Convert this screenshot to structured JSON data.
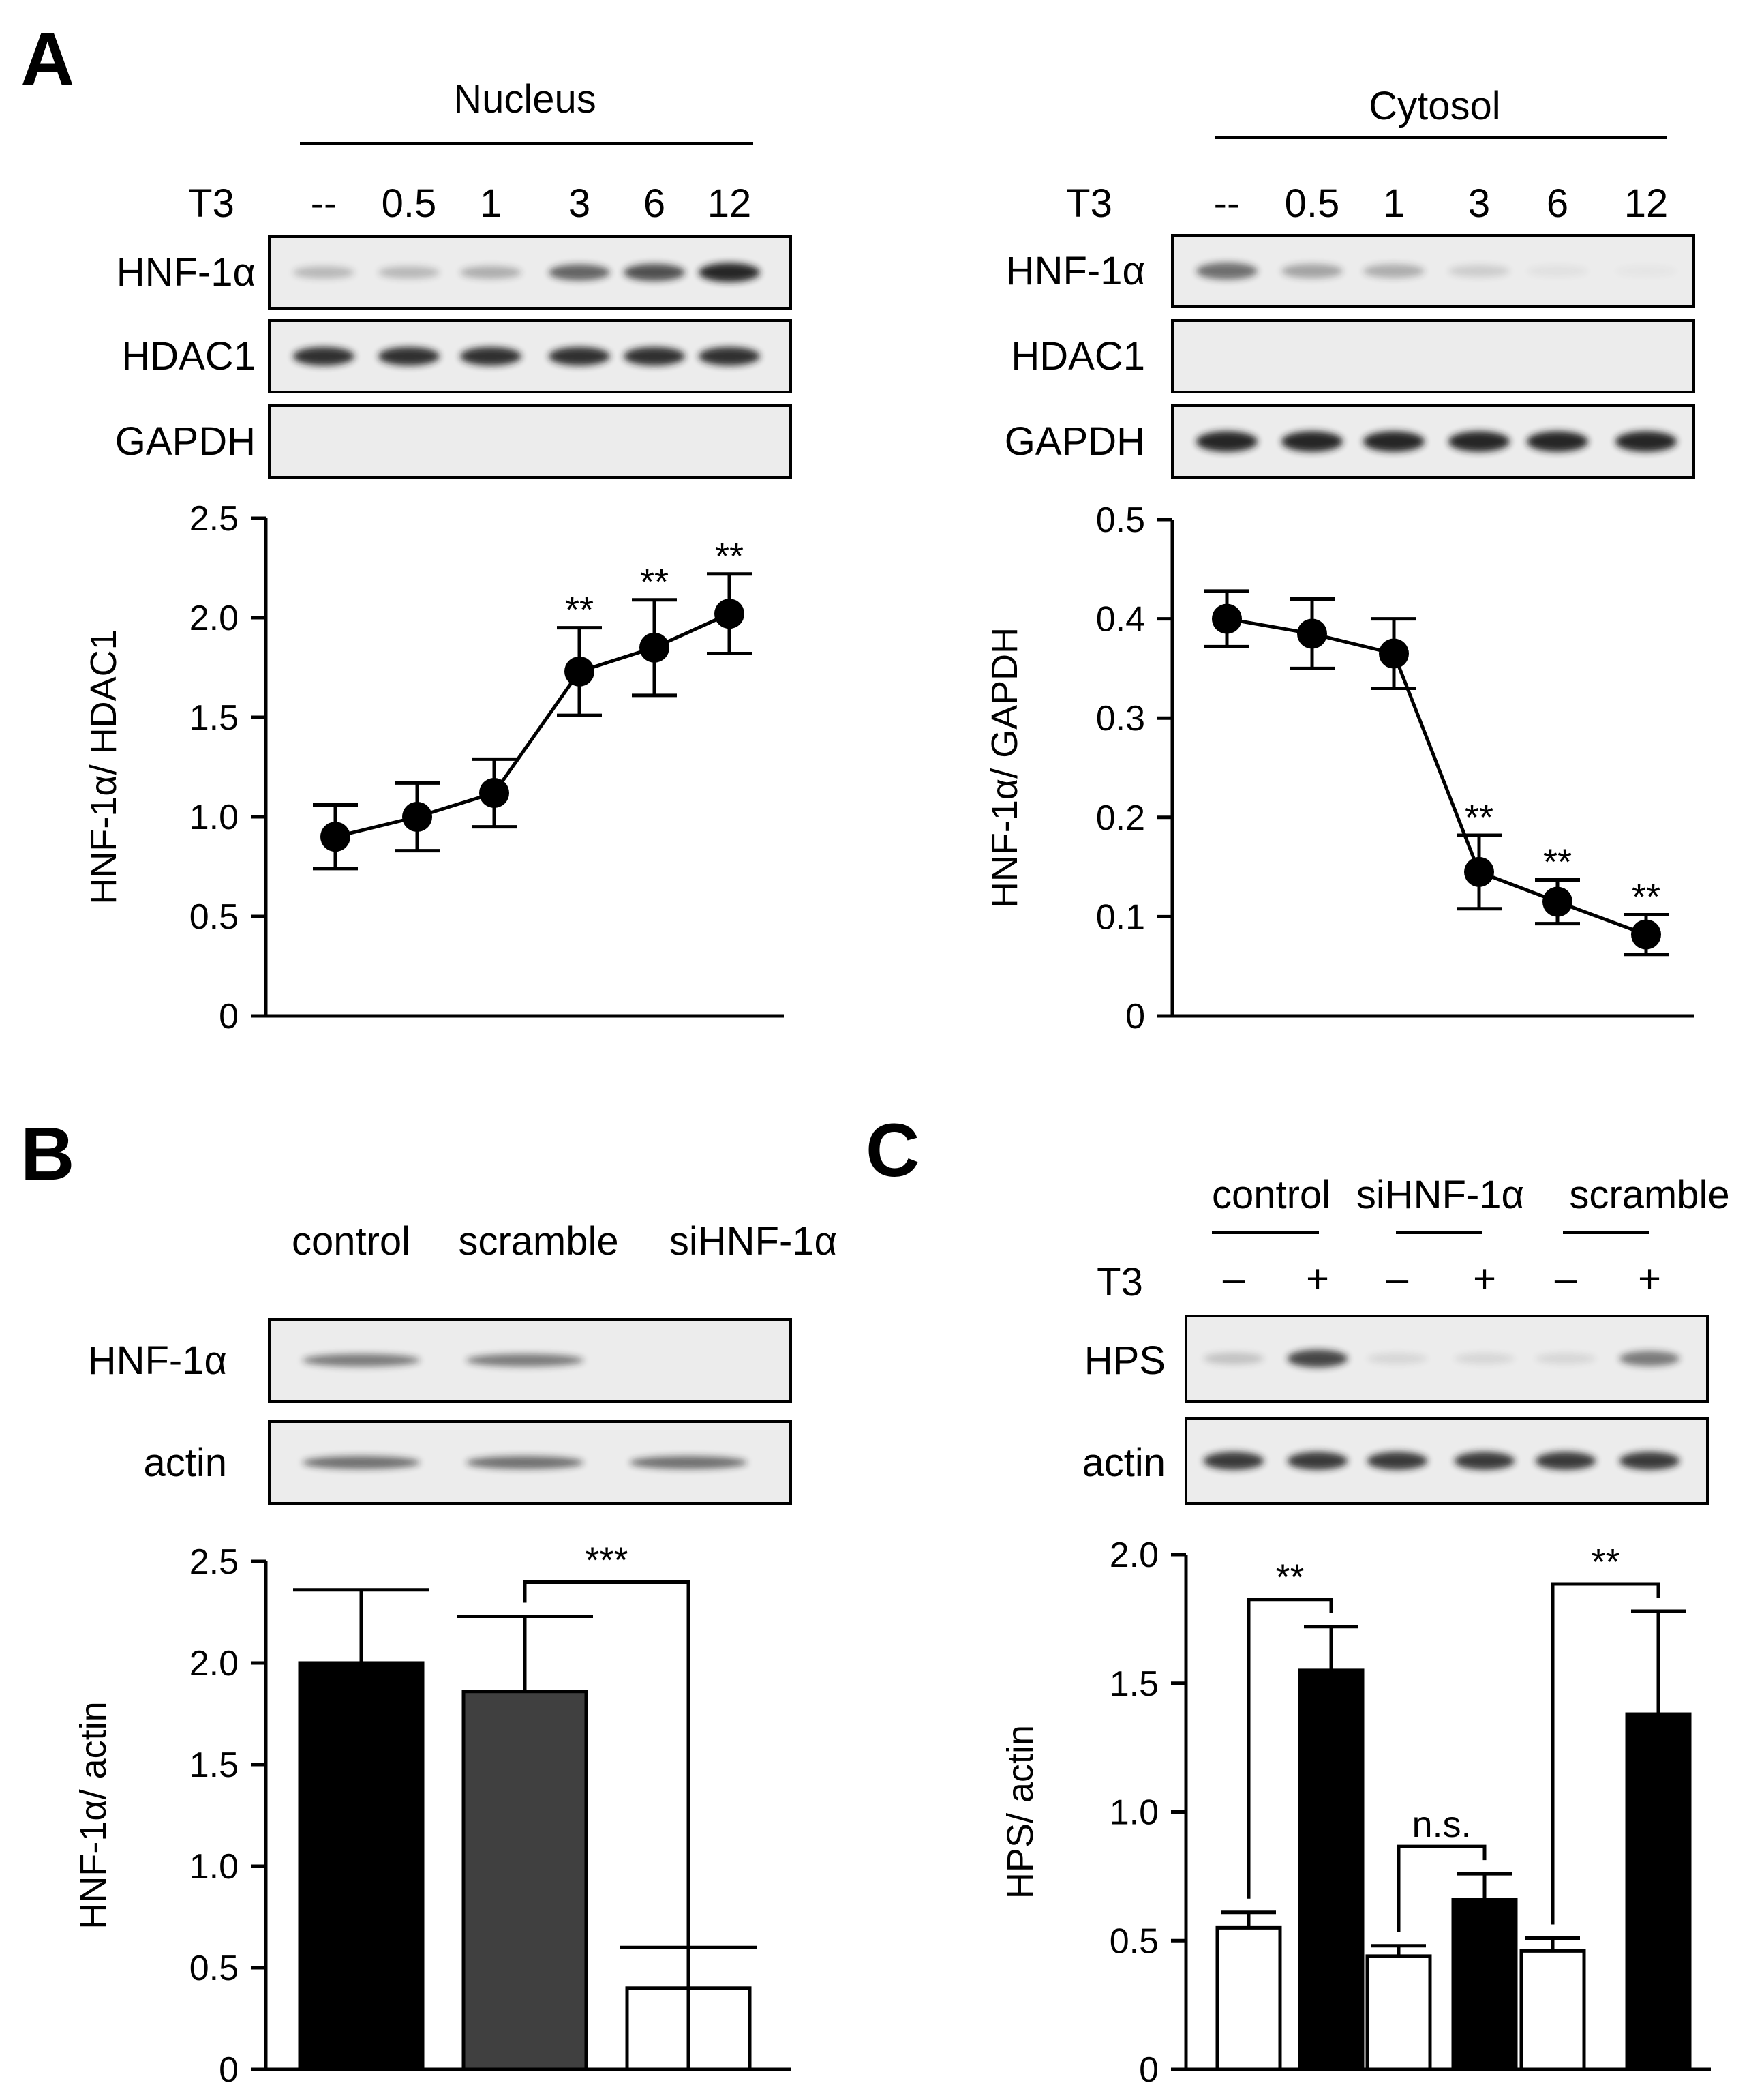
{
  "panels": [
    "A",
    "B",
    "C"
  ],
  "colors": {
    "black": "#000000",
    "dark_gray": "#404040",
    "white": "#ffffff",
    "blot_bg": "#ececec",
    "band": "#1a1a1a"
  },
  "panel_a": {
    "nucleus": {
      "header": "Nucleus",
      "treatment": "T3",
      "lanes": [
        "--",
        "0.5",
        "1",
        "3",
        "6",
        "12"
      ],
      "blots": [
        {
          "label": "HNF-1α",
          "intensity": [
            0.25,
            0.25,
            0.3,
            0.65,
            0.75,
            0.95
          ]
        },
        {
          "label": "HDAC1",
          "intensity": [
            0.9,
            0.9,
            0.9,
            0.9,
            0.9,
            0.9
          ]
        },
        {
          "label": "GAPDH",
          "intensity": [
            0,
            0,
            0,
            0,
            0,
            0
          ]
        }
      ]
    },
    "cytosol": {
      "header": "Cytosol",
      "treatment": "T3",
      "lanes": [
        "--",
        "0.5",
        "1",
        "3",
        "6",
        "12"
      ],
      "blots": [
        {
          "label": "HNF-1α",
          "intensity": [
            0.6,
            0.35,
            0.3,
            0.15,
            0.05,
            0.03
          ]
        },
        {
          "label": "HDAC1",
          "intensity": [
            0,
            0,
            0,
            0,
            0,
            0
          ]
        },
        {
          "label": "GAPDH",
          "intensity": [
            0.95,
            0.95,
            0.95,
            0.95,
            0.95,
            0.95
          ]
        }
      ]
    }
  },
  "panel_b": {
    "groups": [
      "control",
      "scramble",
      "siHNF-1α"
    ],
    "blots": [
      {
        "label": "HNF-1α",
        "intensity": [
          0.55,
          0.55,
          0
        ]
      },
      {
        "label": "actin",
        "intensity": [
          0.6,
          0.6,
          0.6
        ]
      }
    ]
  },
  "panel_c": {
    "groups": [
      "control",
      "siHNF-1α",
      "scramble"
    ],
    "treatment": "T3",
    "lane_signs": [
      "–",
      "+",
      "–",
      "+",
      "–",
      "+"
    ],
    "blots": [
      {
        "label": "HPS",
        "intensity": [
          0.2,
          0.8,
          0.1,
          0.1,
          0.1,
          0.55
        ]
      },
      {
        "label": "actin",
        "intensity": [
          0.85,
          0.85,
          0.85,
          0.85,
          0.85,
          0.85
        ]
      }
    ]
  },
  "chart_data": [
    {
      "type": "line",
      "panel": "A",
      "title": "",
      "xlabel": "",
      "ylabel": "HNF-1α/ HDAC1",
      "ylim": [
        0,
        2.5
      ],
      "yticks": [
        "0",
        "0.5",
        "1.0",
        "1.5",
        "2.0",
        "2.5"
      ],
      "x": [
        "--",
        "0.5",
        "1",
        "3",
        "6",
        "12"
      ],
      "values": [
        0.9,
        1.0,
        1.12,
        1.73,
        1.85,
        2.02
      ],
      "errors": [
        0.16,
        0.17,
        0.17,
        0.22,
        0.24,
        0.2
      ],
      "significance": [
        "",
        "",
        "",
        "**",
        "**",
        "**"
      ]
    },
    {
      "type": "line",
      "panel": "A",
      "title": "",
      "xlabel": "",
      "ylabel": "HNF-1α/  GAPDH",
      "ylim": [
        0,
        0.5
      ],
      "yticks": [
        "0",
        "0.1",
        "0.2",
        "0.3",
        "0.4",
        "0.5"
      ],
      "x": [
        "--",
        "0.5",
        "1",
        "3",
        "6",
        "12"
      ],
      "values": [
        0.4,
        0.385,
        0.365,
        0.145,
        0.115,
        0.082
      ],
      "errors": [
        0.028,
        0.035,
        0.035,
        0.037,
        0.022,
        0.02
      ],
      "significance": [
        "",
        "",
        "",
        "**",
        "**",
        "**"
      ]
    },
    {
      "type": "bar",
      "panel": "B",
      "title": "",
      "xlabel": "",
      "ylabel": "HNF-1α/ actin",
      "ylim": [
        0,
        2.5
      ],
      "yticks": [
        "0",
        "0.5",
        "1.0",
        "1.5",
        "2.0",
        "2.5"
      ],
      "categories": [
        "control",
        "scramble",
        "siHNF-1α"
      ],
      "values": [
        2.0,
        1.86,
        0.4
      ],
      "errors": [
        0.36,
        0.37,
        0.2
      ],
      "bar_colors": [
        "#000000",
        "#404040",
        "#ffffff"
      ],
      "comparisons": [
        {
          "from": 1,
          "to": 2,
          "label": "***"
        }
      ]
    },
    {
      "type": "bar",
      "panel": "C",
      "title": "",
      "xlabel": "",
      "ylabel": "HPS/ actin",
      "ylim": [
        0,
        2.0
      ],
      "yticks": [
        "0",
        "0.5",
        "1.0",
        "1.5",
        "2.0"
      ],
      "categories": [
        "control −",
        "control +",
        "siHNF-1α −",
        "siHNF-1α +",
        "scramble −",
        "scramble +"
      ],
      "values": [
        0.55,
        1.55,
        0.44,
        0.66,
        0.46,
        1.38
      ],
      "errors": [
        0.06,
        0.17,
        0.04,
        0.1,
        0.05,
        0.4
      ],
      "bar_colors": [
        "#ffffff",
        "#000000",
        "#ffffff",
        "#000000",
        "#ffffff",
        "#000000"
      ],
      "comparisons": [
        {
          "from": 0,
          "to": 1,
          "label": "**"
        },
        {
          "from": 2,
          "to": 3,
          "label": "n.s."
        },
        {
          "from": 4,
          "to": 5,
          "label": "**"
        }
      ]
    }
  ]
}
